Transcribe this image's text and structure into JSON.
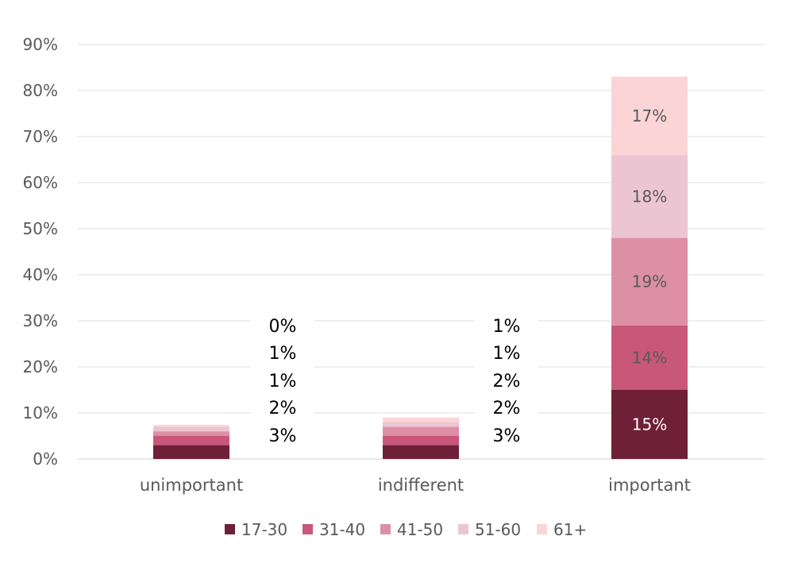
{
  "chart_data": {
    "type": "bar",
    "stacked": true,
    "categories": [
      "unimportant",
      "indifferent",
      "important"
    ],
    "series": [
      {
        "name": "17-30",
        "color": "#6e2039",
        "values": [
          3,
          3,
          15
        ],
        "labels": [
          "3%",
          "3%",
          "15%"
        ]
      },
      {
        "name": "31-40",
        "color": "#c9577a",
        "values": [
          2,
          2,
          14
        ],
        "labels": [
          "2%",
          "2%",
          "14%"
        ]
      },
      {
        "name": "41-50",
        "color": "#dd8fa5",
        "values": [
          1,
          2,
          19
        ],
        "labels": [
          "1%",
          "2%",
          "19%"
        ]
      },
      {
        "name": "51-60",
        "color": "#ecc5d2",
        "values": [
          1,
          1,
          18
        ],
        "labels": [
          "1%",
          "1%",
          "18%"
        ]
      },
      {
        "name": "61+",
        "color": "#fbd4d6",
        "values": [
          0.4,
          1,
          17
        ],
        "labels": [
          "0%",
          "1%",
          "17%"
        ]
      }
    ],
    "ylim": [
      0,
      90
    ],
    "yticks": [
      "0%",
      "10%",
      "20%",
      "30%",
      "40%",
      "50%",
      "60%",
      "70%",
      "80%",
      "90%"
    ],
    "grid": true,
    "legend_position": "bottom"
  }
}
